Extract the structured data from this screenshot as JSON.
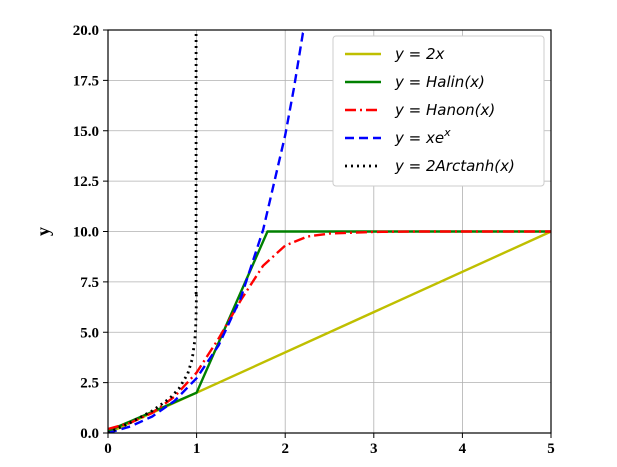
{
  "chart_data": {
    "type": "line",
    "title": "",
    "xlabel": "",
    "ylabel": "y",
    "xlim": [
      0,
      5
    ],
    "ylim": [
      0,
      20
    ],
    "x_ticks": [
      "0",
      "1",
      "2",
      "3",
      "4",
      "5"
    ],
    "y_ticks": [
      "0.0",
      "2.5",
      "5.0",
      "7.5",
      "10.0",
      "12.5",
      "15.0",
      "17.5",
      "20.0"
    ],
    "grid": true,
    "legend_position": "top-right",
    "series": [
      {
        "name": "y = 2x",
        "color": "#bfbf00",
        "style": "solid",
        "x": [
          0,
          5
        ],
        "y": [
          0,
          10
        ]
      },
      {
        "name": "y = Halin(x)",
        "color": "#008000",
        "style": "solid",
        "x": [
          0,
          1,
          1.8,
          5
        ],
        "y": [
          0.1,
          2.0,
          10.0,
          10.0
        ]
      },
      {
        "name": "y = Hanon(x)",
        "color": "#ff0000",
        "style": "dashdot",
        "x": [
          0,
          0.25,
          0.5,
          0.75,
          1.0,
          1.25,
          1.5,
          1.75,
          2.0,
          2.25,
          2.5,
          3.0,
          3.5,
          4.0,
          4.5,
          5.0
        ],
        "y": [
          0.2,
          0.5,
          1.0,
          1.8,
          3.0,
          4.7,
          6.6,
          8.3,
          9.3,
          9.75,
          9.9,
          9.98,
          10.0,
          10.0,
          10.0,
          10.0
        ]
      },
      {
        "name": "y = xe^x",
        "color": "#0000ff",
        "style": "dashed",
        "x": [
          0,
          0.25,
          0.5,
          0.75,
          1.0,
          1.25,
          1.5,
          1.75,
          2.0,
          2.1,
          2.2,
          2.22
        ],
        "y": [
          0,
          0.32,
          0.82,
          1.59,
          2.72,
          4.36,
          6.72,
          10.07,
          14.78,
          17.15,
          19.85,
          20.0
        ]
      },
      {
        "name": "y = 2Arctanh(x)",
        "color": "#000000",
        "style": "dotted",
        "x": [
          0,
          0.25,
          0.5,
          0.7,
          0.8,
          0.9,
          0.95,
          0.98,
          0.99,
          0.995,
          0.998
        ],
        "y": [
          0,
          0.51,
          1.1,
          1.73,
          2.2,
          2.94,
          3.66,
          4.6,
          5.29,
          5.99,
          6.9
        ]
      }
    ],
    "asymptote_vertical_x": 1.0
  },
  "legend": {
    "entries": [
      "y = 2x",
      "y = Halin(x)",
      "y = Hanon(x)",
      "y = xe",
      "y = 2Arctanh(x)"
    ],
    "superscript_4": "x"
  }
}
